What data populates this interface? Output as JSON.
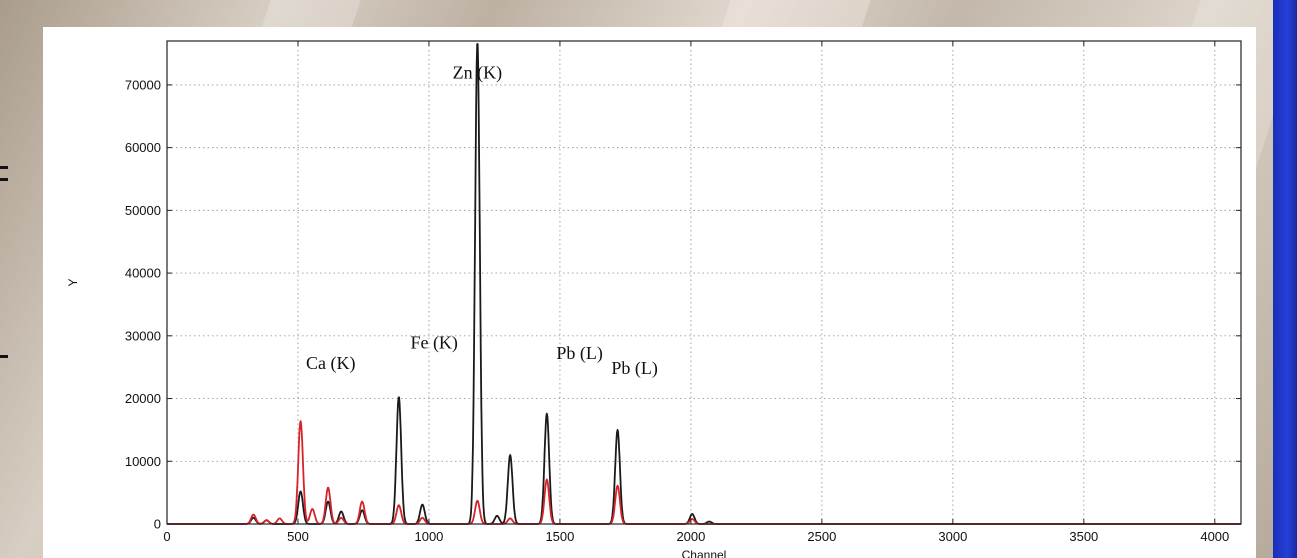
{
  "chart_data": {
    "type": "line",
    "xlabel": "Channel",
    "ylabel": "Y",
    "xlim": [
      0,
      4100
    ],
    "ylim": [
      0,
      77000
    ],
    "x_ticks": [
      0,
      500,
      1000,
      1500,
      2000,
      2500,
      3000,
      3500,
      4000
    ],
    "y_ticks": [
      0,
      10000,
      20000,
      30000,
      40000,
      50000,
      60000,
      70000
    ],
    "grid": true,
    "colors": {
      "series_black": "#1a1a1a",
      "series_red": "#d8232a"
    },
    "series": [
      {
        "color": "#1a1a1a",
        "peaks": [
          {
            "x": 330,
            "y": 1000
          },
          {
            "x": 380,
            "y": 600
          },
          {
            "x": 510,
            "y": 5200
          },
          {
            "x": 615,
            "y": 3600
          },
          {
            "x": 665,
            "y": 2000
          },
          {
            "x": 745,
            "y": 2200
          },
          {
            "x": 885,
            "y": 20300
          },
          {
            "x": 975,
            "y": 3100
          },
          {
            "x": 1185,
            "y": 77000
          },
          {
            "x": 1260,
            "y": 1300
          },
          {
            "x": 1310,
            "y": 11000
          },
          {
            "x": 1450,
            "y": 17600
          },
          {
            "x": 1720,
            "y": 15000
          },
          {
            "x": 2005,
            "y": 1600
          },
          {
            "x": 2070,
            "y": 400
          }
        ]
      },
      {
        "color": "#d8232a",
        "peaks": [
          {
            "x": 330,
            "y": 1500
          },
          {
            "x": 380,
            "y": 600
          },
          {
            "x": 430,
            "y": 900
          },
          {
            "x": 510,
            "y": 16400
          },
          {
            "x": 555,
            "y": 2400
          },
          {
            "x": 615,
            "y": 5800
          },
          {
            "x": 665,
            "y": 1000
          },
          {
            "x": 745,
            "y": 3600
          },
          {
            "x": 885,
            "y": 3000
          },
          {
            "x": 975,
            "y": 1000
          },
          {
            "x": 1185,
            "y": 3700
          },
          {
            "x": 1310,
            "y": 900
          },
          {
            "x": 1450,
            "y": 7100
          },
          {
            "x": 1720,
            "y": 6100
          },
          {
            "x": 2005,
            "y": 800
          }
        ]
      }
    ],
    "annotations": [
      {
        "text": "Zn (K)",
        "x": 1185,
        "y": 71000
      },
      {
        "text": "Fe (K)",
        "x": 1020,
        "y": 28000
      },
      {
        "text": "Ca (K)",
        "x": 625,
        "y": 24700
      },
      {
        "text": "Pb (L)",
        "x": 1575,
        "y": 26300
      },
      {
        "text": "Pb (L)",
        "x": 1785,
        "y": 23900
      }
    ]
  }
}
